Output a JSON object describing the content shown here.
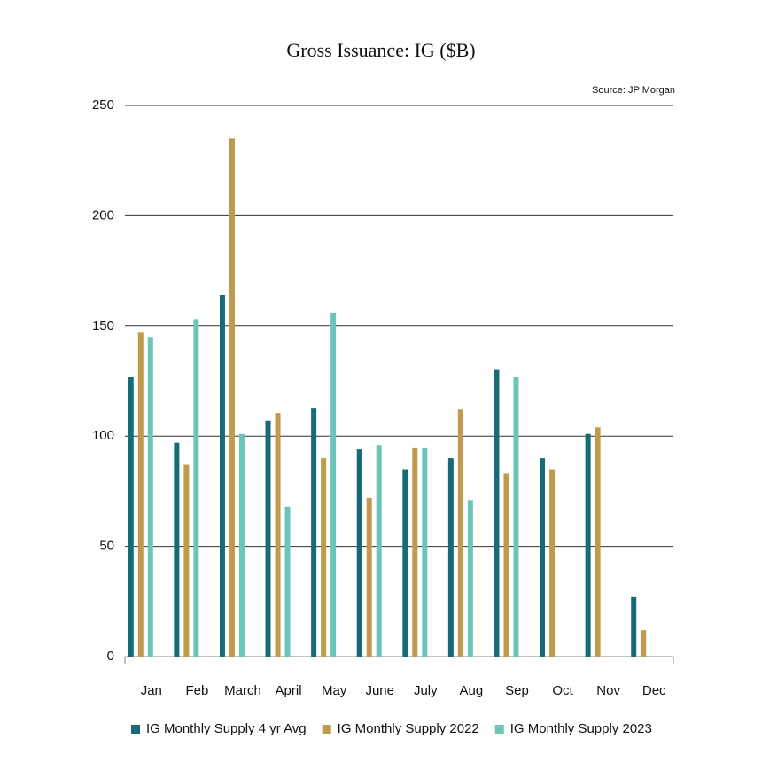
{
  "chart_data": {
    "type": "bar",
    "title": "Gross Issuance: IG ($B)",
    "source": "Source: JP Morgan",
    "categories": [
      "Jan",
      "Feb",
      "March",
      "April",
      "May",
      "June",
      "July",
      "Aug",
      "Sep",
      "Oct",
      "Nov",
      "Dec"
    ],
    "series": [
      {
        "name": "IG Monthly Supply 4 yr Avg",
        "color": "#176b78",
        "values": [
          127,
          97,
          164,
          107,
          112.5,
          94,
          85,
          90,
          130,
          90,
          101,
          27
        ]
      },
      {
        "name": "IG Monthly Supply 2022",
        "color": "#c29a4d",
        "values": [
          147,
          87,
          235,
          110.5,
          90,
          72,
          94.5,
          112,
          83,
          85,
          104,
          12
        ]
      },
      {
        "name": "IG Monthly Supply 2023",
        "color": "#6cc5b9",
        "values": [
          145,
          153,
          101,
          68,
          156,
          96,
          94.5,
          71,
          127,
          null,
          null,
          null
        ]
      }
    ],
    "ylim": [
      0,
      250
    ],
    "yticks": [
      0,
      50,
      100,
      150,
      200,
      250
    ],
    "grid": true,
    "legend": "bottom"
  }
}
